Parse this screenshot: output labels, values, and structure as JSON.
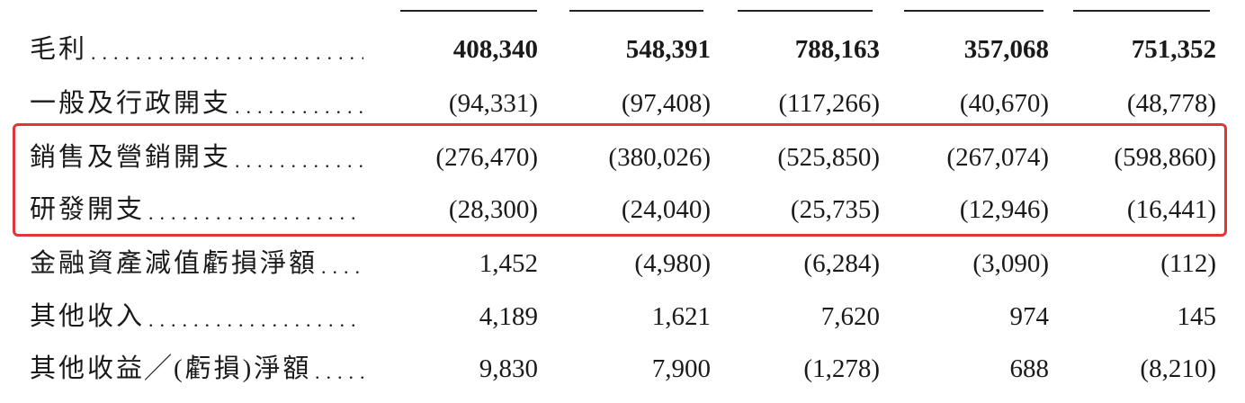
{
  "table": {
    "rows": [
      [
        "毛利",
        "408,340",
        "548,391",
        "788,163",
        "357,068",
        "751,352"
      ],
      [
        "一般及行政開支",
        "(94,331)",
        "(97,408)",
        "(117,266)",
        "(40,670)",
        "(48,778)"
      ],
      [
        "銷售及營銷開支",
        "(276,470)",
        "(380,026)",
        "(525,850)",
        "(267,074)",
        "(598,860)"
      ],
      [
        "研發開支",
        "(28,300)",
        "(24,040)",
        "(25,735)",
        "(12,946)",
        "(16,441)"
      ],
      [
        "金融資產減值虧損淨額",
        "1,452",
        "(4,980)",
        "(6,284)",
        "(3,090)",
        "(112)"
      ],
      [
        "其他收入",
        "4,189",
        "1,621",
        "7,620",
        "974",
        "145"
      ],
      [
        "其他收益╱(虧損)淨額",
        "9,830",
        "7,900",
        "(1,278)",
        "688",
        "(8,210)"
      ]
    ]
  }
}
